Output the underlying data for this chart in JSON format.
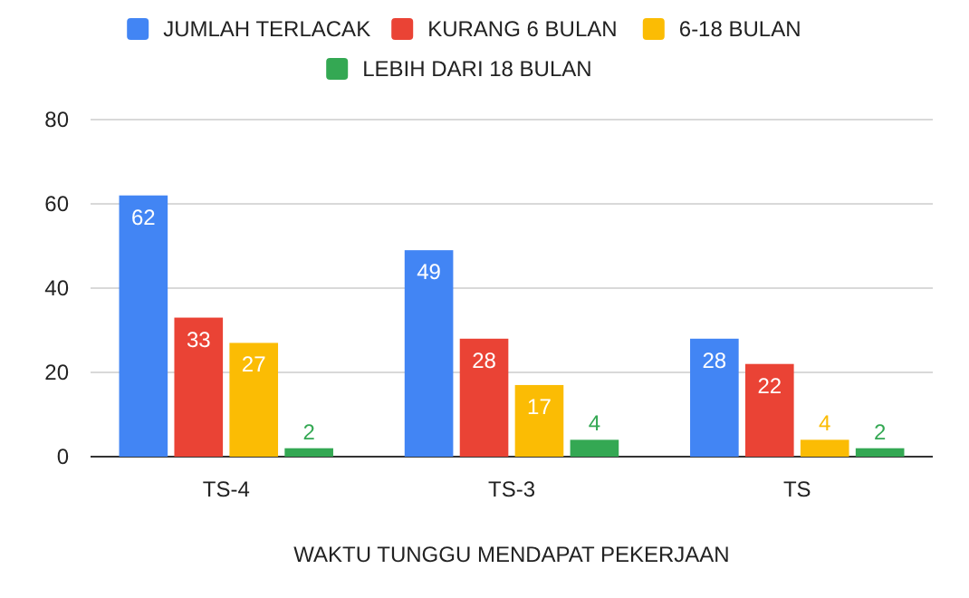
{
  "chart_data": {
    "type": "bar",
    "xlabel": "WAKTU TUNGGU MENDAPAT PEKERJAAN",
    "categories": [
      "TS-4",
      "TS-3",
      "TS"
    ],
    "series": [
      {
        "name": "JUMLAH TERLACAK",
        "color": "#4285f4",
        "values": [
          62,
          49,
          28
        ]
      },
      {
        "name": "KURANG 6 BULAN",
        "color": "#ea4335",
        "values": [
          33,
          28,
          22
        ]
      },
      {
        "name": "6-18 BULAN",
        "color": "#fbbc04",
        "values": [
          27,
          17,
          4
        ]
      },
      {
        "name": "LEBIH DARI 18 BULAN",
        "color": "#34a853",
        "values": [
          2,
          4,
          2
        ]
      }
    ],
    "ylim": [
      0,
      80
    ],
    "yticks": [
      0,
      20,
      40,
      60,
      80
    ],
    "grid": "y",
    "legend": "top",
    "data_labels": true
  }
}
